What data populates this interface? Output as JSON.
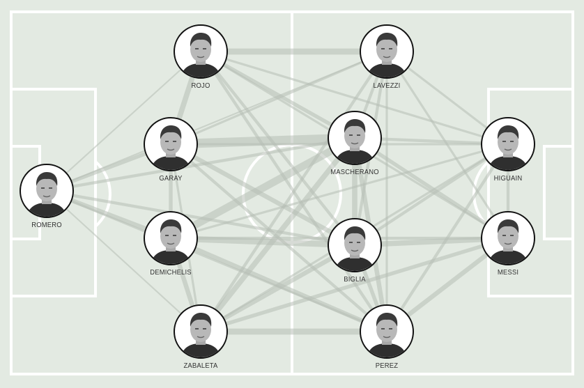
{
  "players": [
    {
      "id": "romero",
      "name": "ROMERO"
    },
    {
      "id": "rojo",
      "name": "ROJO"
    },
    {
      "id": "garay",
      "name": "GARAY"
    },
    {
      "id": "demichelis",
      "name": "DEMICHELIS"
    },
    {
      "id": "zabaleta",
      "name": "ZABALETA"
    },
    {
      "id": "lavezzi",
      "name": "LAVEZZI"
    },
    {
      "id": "mascherano",
      "name": "MASCHERANO"
    },
    {
      "id": "biglia",
      "name": "BIGLIA"
    },
    {
      "id": "perez",
      "name": "PEREZ"
    },
    {
      "id": "higuain",
      "name": "HIGUAIN"
    },
    {
      "id": "messi",
      "name": "MESSI"
    }
  ],
  "passes": [
    {
      "from": "romero",
      "to": "garay",
      "weight": 4
    },
    {
      "from": "romero",
      "to": "demichelis",
      "weight": 5
    },
    {
      "from": "romero",
      "to": "rojo",
      "weight": 1
    },
    {
      "from": "romero",
      "to": "zabaleta",
      "weight": 1
    },
    {
      "from": "romero",
      "to": "mascherano",
      "weight": 3
    },
    {
      "from": "romero",
      "to": "biglia",
      "weight": 3
    },
    {
      "from": "romero",
      "to": "perez",
      "weight": 2
    },
    {
      "from": "romero",
      "to": "lavezzi",
      "weight": 1
    },
    {
      "from": "rojo",
      "to": "lavezzi",
      "weight": 7
    },
    {
      "from": "rojo",
      "to": "garay",
      "weight": 6
    },
    {
      "from": "rojo",
      "to": "mascherano",
      "weight": 4
    },
    {
      "from": "rojo",
      "to": "biglia",
      "weight": 3
    },
    {
      "from": "rojo",
      "to": "perez",
      "weight": 3
    },
    {
      "from": "rojo",
      "to": "higuain",
      "weight": 2
    },
    {
      "from": "rojo",
      "to": "messi",
      "weight": 2
    },
    {
      "from": "garay",
      "to": "mascherano",
      "weight": 11
    },
    {
      "from": "garay",
      "to": "demichelis",
      "weight": 4
    },
    {
      "from": "garay",
      "to": "biglia",
      "weight": 5
    },
    {
      "from": "garay",
      "to": "perez",
      "weight": 3
    },
    {
      "from": "garay",
      "to": "zabaleta",
      "weight": 2
    },
    {
      "from": "garay",
      "to": "higuain",
      "weight": 2
    },
    {
      "from": "garay",
      "to": "lavezzi",
      "weight": 2
    },
    {
      "from": "demichelis",
      "to": "mascherano",
      "weight": 9
    },
    {
      "from": "demichelis",
      "to": "biglia",
      "weight": 7
    },
    {
      "from": "demichelis",
      "to": "zabaleta",
      "weight": 5
    },
    {
      "from": "demichelis",
      "to": "perez",
      "weight": 5
    },
    {
      "from": "demichelis",
      "to": "messi",
      "weight": 3
    },
    {
      "from": "demichelis",
      "to": "higuain",
      "weight": 2
    },
    {
      "from": "zabaleta",
      "to": "perez",
      "weight": 7
    },
    {
      "from": "zabaleta",
      "to": "mascherano",
      "weight": 6
    },
    {
      "from": "zabaleta",
      "to": "biglia",
      "weight": 5
    },
    {
      "from": "zabaleta",
      "to": "messi",
      "weight": 4
    },
    {
      "from": "zabaleta",
      "to": "lavezzi",
      "weight": 3
    },
    {
      "from": "zabaleta",
      "to": "higuain",
      "weight": 2
    },
    {
      "from": "mascherano",
      "to": "biglia",
      "weight": 6
    },
    {
      "from": "mascherano",
      "to": "lavezzi",
      "weight": 3
    },
    {
      "from": "mascherano",
      "to": "perez",
      "weight": 5
    },
    {
      "from": "mascherano",
      "to": "higuain",
      "weight": 3
    },
    {
      "from": "mascherano",
      "to": "messi",
      "weight": 4
    },
    {
      "from": "biglia",
      "to": "messi",
      "weight": 6
    },
    {
      "from": "biglia",
      "to": "perez",
      "weight": 4
    },
    {
      "from": "biglia",
      "to": "higuain",
      "weight": 3
    },
    {
      "from": "biglia",
      "to": "lavezzi",
      "weight": 3
    },
    {
      "from": "perez",
      "to": "messi",
      "weight": 5
    },
    {
      "from": "perez",
      "to": "higuain",
      "weight": 3
    },
    {
      "from": "perez",
      "to": "lavezzi",
      "weight": 2
    },
    {
      "from": "lavezzi",
      "to": "higuain",
      "weight": 2
    },
    {
      "from": "lavezzi",
      "to": "messi",
      "weight": 2
    },
    {
      "from": "higuain",
      "to": "messi",
      "weight": 3
    }
  ],
  "colors": {
    "pitch": "#e3eae2",
    "pitch_lines": "#ffffff",
    "pass_lines": "#b7beb5",
    "player_border": "#111111",
    "label": "#333333"
  },
  "icons": {
    "player_photo": "player-portrait-icon"
  }
}
